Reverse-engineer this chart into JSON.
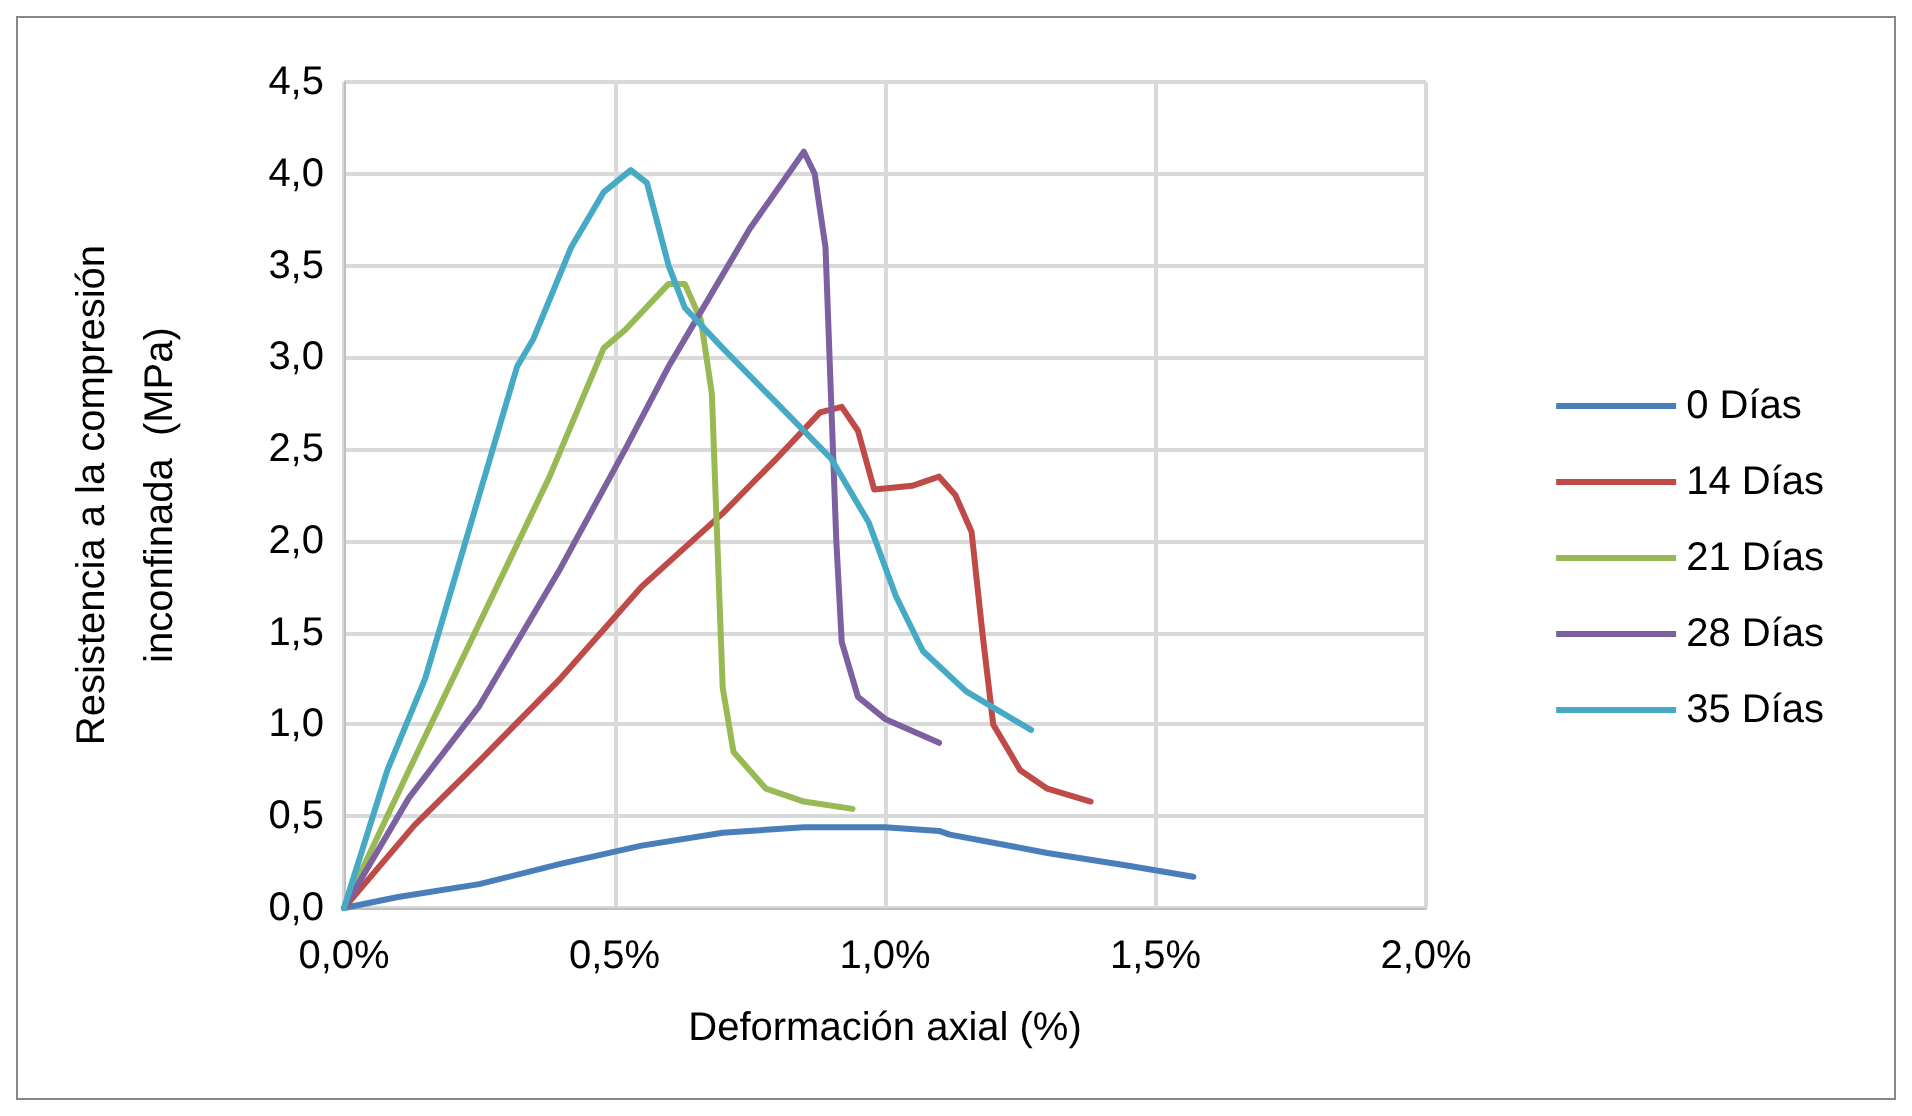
{
  "chart_data": {
    "type": "line",
    "xlabel": "Deformación axial (%)",
    "ylabel": "Resistencia a la compresión\ninconfinada  (MPa)",
    "xlim": [
      0,
      2
    ],
    "xticks": [
      {
        "value": 0,
        "label": "0,0%"
      },
      {
        "value": 0.5,
        "label": "0,5%"
      },
      {
        "value": 1,
        "label": "1,0%"
      },
      {
        "value": 1.5,
        "label": "1,5%"
      },
      {
        "value": 2,
        "label": "2,0%"
      }
    ],
    "ylim": [
      0,
      4.5
    ],
    "yticks": [
      {
        "value": 0,
        "label": "0,0"
      },
      {
        "value": 0.5,
        "label": "0,5"
      },
      {
        "value": 1,
        "label": "1,0"
      },
      {
        "value": 1.5,
        "label": "1,5"
      },
      {
        "value": 2,
        "label": "2,0"
      },
      {
        "value": 2.5,
        "label": "2,5"
      },
      {
        "value": 3,
        "label": "3,0"
      },
      {
        "value": 3.5,
        "label": "3,5"
      },
      {
        "value": 4,
        "label": "4,0"
      },
      {
        "value": 4.5,
        "label": "4,5"
      }
    ],
    "grid": true,
    "legend": "right",
    "marker": "none",
    "line_style": "solid",
    "series": [
      {
        "name": "0 Días",
        "color": "#4a7ebb",
        "x": [
          0,
          0.1,
          0.25,
          0.4,
          0.55,
          0.7,
          0.85,
          1.0,
          1.1,
          1.12,
          1.3,
          1.45,
          1.57
        ],
        "values": [
          0,
          0.06,
          0.13,
          0.24,
          0.34,
          0.41,
          0.44,
          0.44,
          0.42,
          0.4,
          0.3,
          0.23,
          0.17
        ]
      },
      {
        "name": "14 Días",
        "color": "#be4b48",
        "x": [
          0,
          0.13,
          0.25,
          0.4,
          0.55,
          0.7,
          0.8,
          0.88,
          0.92,
          0.95,
          0.98,
          1.05,
          1.1,
          1.13,
          1.16,
          1.18,
          1.2,
          1.25,
          1.3,
          1.38
        ],
        "values": [
          0,
          0.45,
          0.8,
          1.25,
          1.75,
          2.15,
          2.45,
          2.7,
          2.73,
          2.6,
          2.28,
          2.3,
          2.35,
          2.25,
          2.05,
          1.5,
          1.0,
          0.75,
          0.65,
          0.58
        ]
      },
      {
        "name": "21 Días",
        "color": "#98b954",
        "x": [
          0,
          0.12,
          0.25,
          0.38,
          0.48,
          0.52,
          0.6,
          0.63,
          0.66,
          0.68,
          0.69,
          0.7,
          0.72,
          0.78,
          0.85,
          0.94
        ],
        "values": [
          0,
          0.75,
          1.55,
          2.35,
          3.05,
          3.15,
          3.4,
          3.4,
          3.2,
          2.8,
          2.0,
          1.2,
          0.85,
          0.65,
          0.58,
          0.54
        ]
      },
      {
        "name": "28 Días",
        "color": "#7d60a0",
        "x": [
          0,
          0.12,
          0.25,
          0.4,
          0.52,
          0.6,
          0.65,
          0.75,
          0.85,
          0.87,
          0.89,
          0.9,
          0.91,
          0.92,
          0.95,
          1.0,
          1.1
        ],
        "values": [
          0,
          0.6,
          1.1,
          1.85,
          2.5,
          2.95,
          3.2,
          3.7,
          4.12,
          4.0,
          3.6,
          2.8,
          2.0,
          1.45,
          1.15,
          1.03,
          0.9
        ]
      },
      {
        "name": "35 Días",
        "color": "#46aac5",
        "x": [
          0,
          0.08,
          0.15,
          0.25,
          0.32,
          0.35,
          0.42,
          0.48,
          0.53,
          0.56,
          0.6,
          0.63,
          0.7,
          0.8,
          0.9,
          0.97,
          1.02,
          1.07,
          1.15,
          1.27
        ],
        "values": [
          0,
          0.75,
          1.25,
          2.25,
          2.95,
          3.1,
          3.6,
          3.9,
          4.02,
          3.95,
          3.5,
          3.27,
          3.05,
          2.75,
          2.45,
          2.1,
          1.7,
          1.4,
          1.18,
          0.97
        ]
      }
    ]
  }
}
